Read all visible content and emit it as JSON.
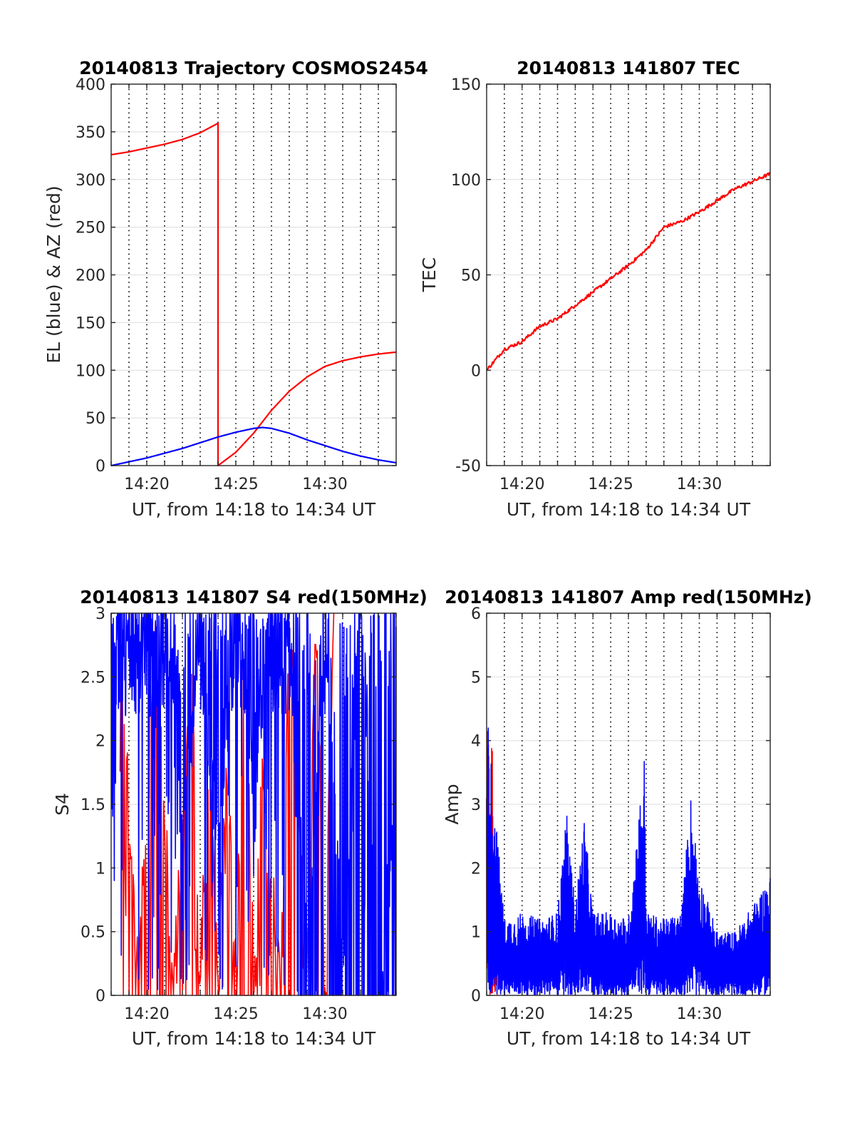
{
  "chart_data": [
    {
      "type": "line",
      "title": "20140813 Trajectory COSMOS2454",
      "xlabel": "UT, from 14:18 to 14:34 UT",
      "ylabel": "EL (blue) & AZ (red)",
      "xlim": [
        "14:18",
        "14:34"
      ],
      "xticks": [
        "14:20",
        "14:25",
        "14:30"
      ],
      "ylim": [
        0,
        400
      ],
      "yticks": [
        0,
        50,
        100,
        150,
        200,
        250,
        300,
        350,
        400
      ],
      "grid": "dotted vertical lines every minute, light horizontal lines at y ticks",
      "series": [
        {
          "color": "#ff0000",
          "x": [
            "14:18",
            "14:19",
            "14:20",
            "14:21",
            "14:22",
            "14:23",
            "14:24",
            "14:24",
            "14:25",
            "14:26",
            "14:27",
            "14:28",
            "14:29",
            "14:30",
            "14:31",
            "14:32",
            "14:33",
            "14:34"
          ],
          "values": [
            326,
            329,
            333,
            337,
            342,
            349,
            359,
            0,
            14,
            34,
            58,
            78,
            93,
            104,
            110,
            114,
            117,
            119
          ]
        },
        {
          "color": "#0000ff",
          "x": [
            "14:18",
            "14:19",
            "14:20",
            "14:21",
            "14:22",
            "14:23",
            "14:24",
            "14:25",
            "14:26",
            "14:26.5",
            "14:27",
            "14:28",
            "14:29",
            "14:30",
            "14:31",
            "14:32",
            "14:33",
            "14:34"
          ],
          "values": [
            0,
            4,
            8,
            13,
            18,
            24,
            30,
            35,
            39,
            40,
            39,
            34,
            27,
            21,
            15,
            10,
            6,
            3
          ]
        }
      ]
    },
    {
      "type": "line",
      "title": "20140813 141807 TEC",
      "xlabel": "UT, from 14:18 to 14:34 UT",
      "ylabel": "TEC",
      "xlim": [
        "14:18",
        "14:34"
      ],
      "xticks": [
        "14:20",
        "14:25",
        "14:30"
      ],
      "ylim": [
        -50,
        150
      ],
      "yticks": [
        -50,
        0,
        50,
        100,
        150
      ],
      "grid": "dotted vertical lines every minute, light horizontal lines at y ticks",
      "series": [
        {
          "color": "#ff0000",
          "x": [
            "14:18",
            "14:19",
            "14:20",
            "14:21",
            "14:22",
            "14:23",
            "14:24",
            "14:25",
            "14:26",
            "14:27",
            "14:28",
            "14:29",
            "14:30",
            "14:31",
            "14:32",
            "14:33",
            "14:34"
          ],
          "values": [
            0,
            11,
            15,
            23,
            27,
            34,
            41,
            48,
            55,
            63,
            75,
            78,
            83,
            89,
            95,
            99,
            103
          ]
        }
      ]
    },
    {
      "type": "line",
      "title": "20140813 141807 S4 red(150MHz)",
      "xlabel": "UT, from 14:18 to 14:34 UT",
      "ylabel": "S4",
      "xlim": [
        "14:18",
        "14:34"
      ],
      "xticks": [
        "14:20",
        "14:25",
        "14:30"
      ],
      "ylim": [
        0,
        3
      ],
      "yticks": [
        0,
        0.5,
        1,
        1.5,
        2,
        2.5,
        3
      ],
      "grid": "dotted vertical lines every minute, light horizontal lines at y ticks",
      "series": [
        {
          "color": "#ff0000",
          "x": [
            "14:18.5",
            "14:19.5",
            "14:20.5",
            "14:21.5",
            "14:22.5",
            "14:23",
            "14:23.5",
            "14:24",
            "14:24.5",
            "14:25",
            "14:25.5",
            "14:26",
            "14:26.5",
            "14:27.5",
            "14:28",
            "14:29",
            "14:29.5",
            "14:30",
            "14:30.5"
          ],
          "values": [
            2.6,
            0,
            2.6,
            0,
            2.4,
            0,
            1.7,
            0,
            1.6,
            0,
            3,
            0,
            1.6,
            0,
            2.9,
            0,
            2.8,
            0,
            3
          ]
        },
        {
          "color": "#0000ff",
          "x": [
            "14:18",
            "14:18.3",
            "14:19",
            "14:20",
            "14:21",
            "14:22",
            "14:23",
            "14:24",
            "14:25",
            "14:26",
            "14:27",
            "14:28",
            "14:29",
            "14:30",
            "14:31",
            "14:32",
            "14:33",
            "14:34"
          ],
          "values": [
            0.8,
            2.9,
            2.5,
            2.7,
            2.6,
            1.0,
            2.4,
            0.9,
            2.7,
            1.3,
            2.8,
            2.5,
            0,
            2.4,
            0,
            2.8,
            0,
            1.0
          ]
        }
      ]
    },
    {
      "type": "line",
      "title": "20140813 141807 Amp red(150MHz)",
      "xlabel": "UT, from 14:18 to 14:34 UT",
      "ylabel": "Amp",
      "xlim": [
        "14:18",
        "14:34"
      ],
      "xticks": [
        "14:20",
        "14:25",
        "14:30"
      ],
      "ylim": [
        0,
        6
      ],
      "yticks": [
        0,
        1,
        2,
        3,
        4,
        5,
        6
      ],
      "grid": "dotted vertical lines every minute, light horizontal lines at y ticks",
      "series": [
        {
          "color": "#ff0000",
          "x": [
            "14:18.0",
            "14:18.1",
            "14:18.2",
            "14:18.3",
            "14:18.4",
            "14:18.5",
            "14:18.6"
          ],
          "values": [
            4.6,
            4.8,
            3.0,
            4.4,
            1.7,
            1.4,
            1.0
          ]
        },
        {
          "color": "#0000ff",
          "x": [
            "14:18",
            "14:19",
            "14:20",
            "14:21",
            "14:22",
            "14:22.5",
            "14:23",
            "14:23.5",
            "14:24",
            "14:25",
            "14:26",
            "14:26.9",
            "14:27",
            "14:28",
            "14:29",
            "14:29.5",
            "14:30",
            "14:31",
            "14:32",
            "14:33",
            "14:34"
          ],
          "values": [
            4.6,
            1.2,
            1.3,
            1.2,
            1.3,
            2.9,
            1.4,
            2.8,
            1.3,
            1.3,
            1.2,
            3.8,
            1.3,
            1.2,
            1.3,
            3.2,
            1.9,
            1.0,
            1.0,
            1.4,
            1.9
          ]
        }
      ]
    }
  ]
}
